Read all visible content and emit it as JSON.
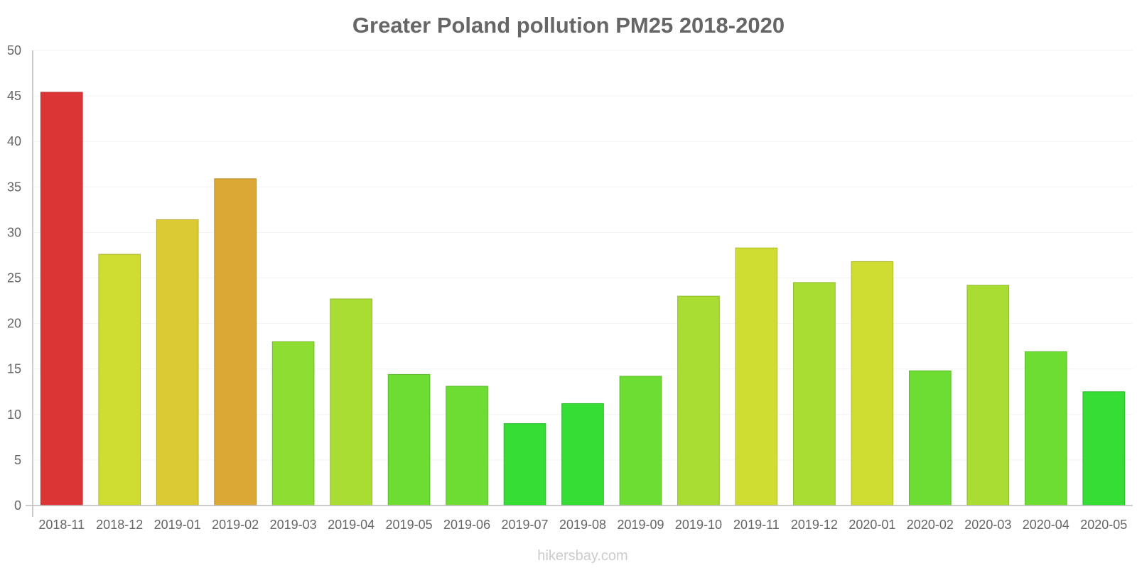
{
  "chart_data": {
    "type": "bar",
    "title": "Greater Poland pollution PM25 2018-2020",
    "xlabel": "",
    "ylabel": "",
    "ylim": [
      0,
      50
    ],
    "yticks": [
      0,
      5,
      10,
      15,
      20,
      25,
      30,
      35,
      40,
      45,
      50
    ],
    "grid": true,
    "categories": [
      "2018-11",
      "2018-12",
      "2019-01",
      "2019-02",
      "2019-03",
      "2019-04",
      "2019-05",
      "2019-06",
      "2019-07",
      "2019-08",
      "2019-09",
      "2019-10",
      "2019-11",
      "2019-12",
      "2020-01",
      "2020-02",
      "2020-03",
      "2020-04",
      "2020-05"
    ],
    "values": [
      45.4,
      27.6,
      31.4,
      35.9,
      18.0,
      22.7,
      14.4,
      13.1,
      9.0,
      11.2,
      14.2,
      23.0,
      28.3,
      24.5,
      26.8,
      14.8,
      24.2,
      16.9,
      12.5
    ],
    "colors": [
      "#db3535",
      "#cfdd33",
      "#dbca34",
      "#dca835",
      "#8ddd33",
      "#aadd33",
      "#6ddd33",
      "#6ddd33",
      "#35dd35",
      "#35dd35",
      "#6ddd33",
      "#aadd33",
      "#cfdd33",
      "#aadd33",
      "#cfdd33",
      "#6ddd33",
      "#aadd33",
      "#6ddd33",
      "#35dd35"
    ],
    "border_colors": [
      "#b82c2c",
      "#adb92b",
      "#b8a92b",
      "#b88d2c",
      "#76b92b",
      "#8fb92b",
      "#5bb92b",
      "#5bb92b",
      "#2cb92c",
      "#2cb92c",
      "#5bb92b",
      "#8fb92b",
      "#adb92b",
      "#8fb92b",
      "#adb92b",
      "#5bb92b",
      "#8fb92b",
      "#5bb92b",
      "#2cb92c"
    ]
  },
  "watermark": "hikersbay.com"
}
